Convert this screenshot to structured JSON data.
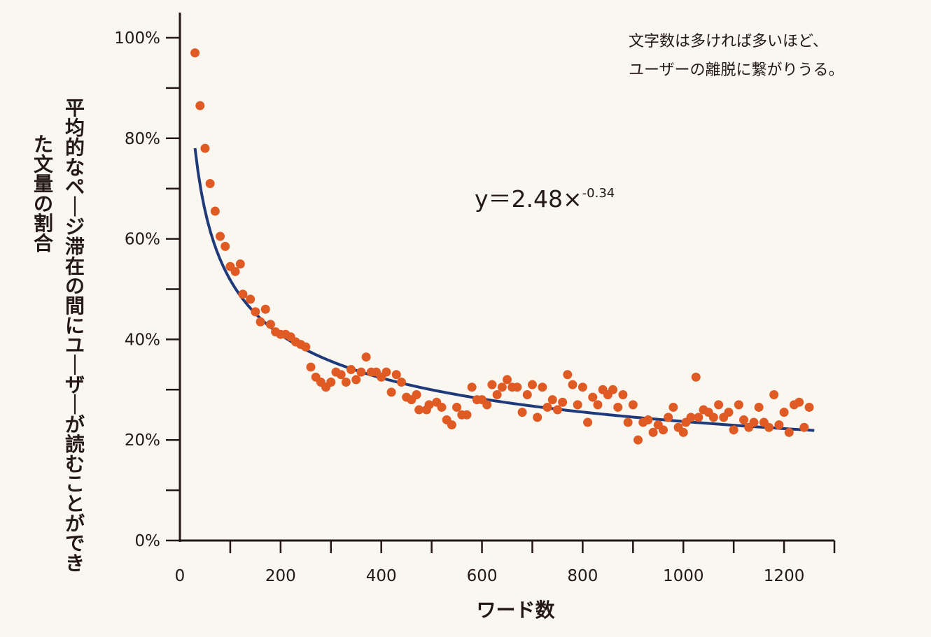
{
  "chart_data": {
    "type": "scatter",
    "xlabel": "ワード数",
    "ylabel": "平均的なページ滞在の間にユーザーが読むことができた文量の割合",
    "xlim": [
      0,
      1300
    ],
    "ylim": [
      0,
      1.0
    ],
    "x_ticks": [
      {
        "value": 0,
        "label": "0"
      },
      {
        "value": 200,
        "label": "200"
      },
      {
        "value": 400,
        "label": "400"
      },
      {
        "value": 600,
        "label": "600"
      },
      {
        "value": 800,
        "label": "800"
      },
      {
        "value": 1000,
        "label": "1000"
      },
      {
        "value": 1200,
        "label": "1200"
      }
    ],
    "x_minor_ticks": [
      100,
      300,
      500,
      700,
      900,
      1100,
      1300
    ],
    "y_ticks": [
      {
        "value": 0.0,
        "label": "0%"
      },
      {
        "value": 0.2,
        "label": "20%"
      },
      {
        "value": 0.4,
        "label": "40%"
      },
      {
        "value": 0.6,
        "label": "60%"
      },
      {
        "value": 0.8,
        "label": "80%"
      },
      {
        "value": 1.0,
        "label": "100%"
      }
    ],
    "y_minor_ticks": [
      0.1,
      0.3,
      0.5,
      0.7,
      0.9
    ],
    "annotation": [
      "文字数は多ければ多いほど、",
      "ユーザーの離脱に繋がりうる。"
    ],
    "equation": {
      "base": "y＝2.48×",
      "exponent": "-0.34"
    },
    "trendline": {
      "type": "power",
      "a": 2.48,
      "b": -0.34,
      "x_range": [
        30,
        1260
      ]
    },
    "colors": {
      "points": "#e05a24",
      "trendline": "#1f3a7a",
      "axis": "#231815",
      "background": "#faf7f0"
    },
    "series": [
      {
        "points": [
          [
            30,
            0.97
          ],
          [
            40,
            0.865
          ],
          [
            50,
            0.78
          ],
          [
            60,
            0.71
          ],
          [
            70,
            0.655
          ],
          [
            80,
            0.605
          ],
          [
            90,
            0.585
          ],
          [
            100,
            0.545
          ],
          [
            110,
            0.535
          ],
          [
            120,
            0.55
          ],
          [
            125,
            0.49
          ],
          [
            140,
            0.48
          ],
          [
            150,
            0.455
          ],
          [
            160,
            0.435
          ],
          [
            170,
            0.46
          ],
          [
            180,
            0.43
          ],
          [
            190,
            0.415
          ],
          [
            200,
            0.41
          ],
          [
            210,
            0.41
          ],
          [
            220,
            0.405
          ],
          [
            230,
            0.395
          ],
          [
            240,
            0.39
          ],
          [
            250,
            0.385
          ],
          [
            260,
            0.345
          ],
          [
            270,
            0.325
          ],
          [
            280,
            0.315
          ],
          [
            290,
            0.305
          ],
          [
            300,
            0.315
          ],
          [
            310,
            0.335
          ],
          [
            320,
            0.33
          ],
          [
            330,
            0.315
          ],
          [
            340,
            0.34
          ],
          [
            350,
            0.32
          ],
          [
            360,
            0.335
          ],
          [
            370,
            0.365
          ],
          [
            380,
            0.335
          ],
          [
            390,
            0.335
          ],
          [
            400,
            0.325
          ],
          [
            410,
            0.335
          ],
          [
            420,
            0.295
          ],
          [
            430,
            0.33
          ],
          [
            440,
            0.315
          ],
          [
            450,
            0.285
          ],
          [
            460,
            0.28
          ],
          [
            470,
            0.29
          ],
          [
            475,
            0.26
          ],
          [
            490,
            0.26
          ],
          [
            495,
            0.27
          ],
          [
            510,
            0.275
          ],
          [
            520,
            0.265
          ],
          [
            530,
            0.24
          ],
          [
            540,
            0.23
          ],
          [
            550,
            0.265
          ],
          [
            560,
            0.25
          ],
          [
            570,
            0.25
          ],
          [
            580,
            0.305
          ],
          [
            590,
            0.28
          ],
          [
            600,
            0.28
          ],
          [
            610,
            0.27
          ],
          [
            620,
            0.31
          ],
          [
            630,
            0.29
          ],
          [
            640,
            0.305
          ],
          [
            650,
            0.32
          ],
          [
            660,
            0.305
          ],
          [
            670,
            0.305
          ],
          [
            680,
            0.255
          ],
          [
            690,
            0.29
          ],
          [
            700,
            0.31
          ],
          [
            710,
            0.245
          ],
          [
            720,
            0.305
          ],
          [
            730,
            0.265
          ],
          [
            740,
            0.28
          ],
          [
            750,
            0.26
          ],
          [
            760,
            0.275
          ],
          [
            770,
            0.33
          ],
          [
            780,
            0.31
          ],
          [
            790,
            0.27
          ],
          [
            800,
            0.305
          ],
          [
            810,
            0.235
          ],
          [
            820,
            0.285
          ],
          [
            830,
            0.27
          ],
          [
            840,
            0.3
          ],
          [
            850,
            0.29
          ],
          [
            860,
            0.3
          ],
          [
            870,
            0.265
          ],
          [
            880,
            0.29
          ],
          [
            890,
            0.235
          ],
          [
            900,
            0.27
          ],
          [
            910,
            0.2
          ],
          [
            920,
            0.235
          ],
          [
            930,
            0.24
          ],
          [
            940,
            0.215
          ],
          [
            950,
            0.23
          ],
          [
            960,
            0.22
          ],
          [
            970,
            0.245
          ],
          [
            980,
            0.265
          ],
          [
            990,
            0.225
          ],
          [
            1000,
            0.215
          ],
          [
            1005,
            0.235
          ],
          [
            1015,
            0.245
          ],
          [
            1025,
            0.325
          ],
          [
            1030,
            0.245
          ],
          [
            1040,
            0.26
          ],
          [
            1050,
            0.255
          ],
          [
            1060,
            0.245
          ],
          [
            1070,
            0.27
          ],
          [
            1080,
            0.245
          ],
          [
            1090,
            0.255
          ],
          [
            1100,
            0.22
          ],
          [
            1110,
            0.27
          ],
          [
            1120,
            0.24
          ],
          [
            1130,
            0.225
          ],
          [
            1140,
            0.235
          ],
          [
            1150,
            0.265
          ],
          [
            1160,
            0.235
          ],
          [
            1170,
            0.225
          ],
          [
            1180,
            0.29
          ],
          [
            1190,
            0.23
          ],
          [
            1200,
            0.255
          ],
          [
            1210,
            0.215
          ],
          [
            1220,
            0.27
          ],
          [
            1230,
            0.275
          ],
          [
            1240,
            0.225
          ],
          [
            1250,
            0.265
          ]
        ]
      }
    ]
  }
}
